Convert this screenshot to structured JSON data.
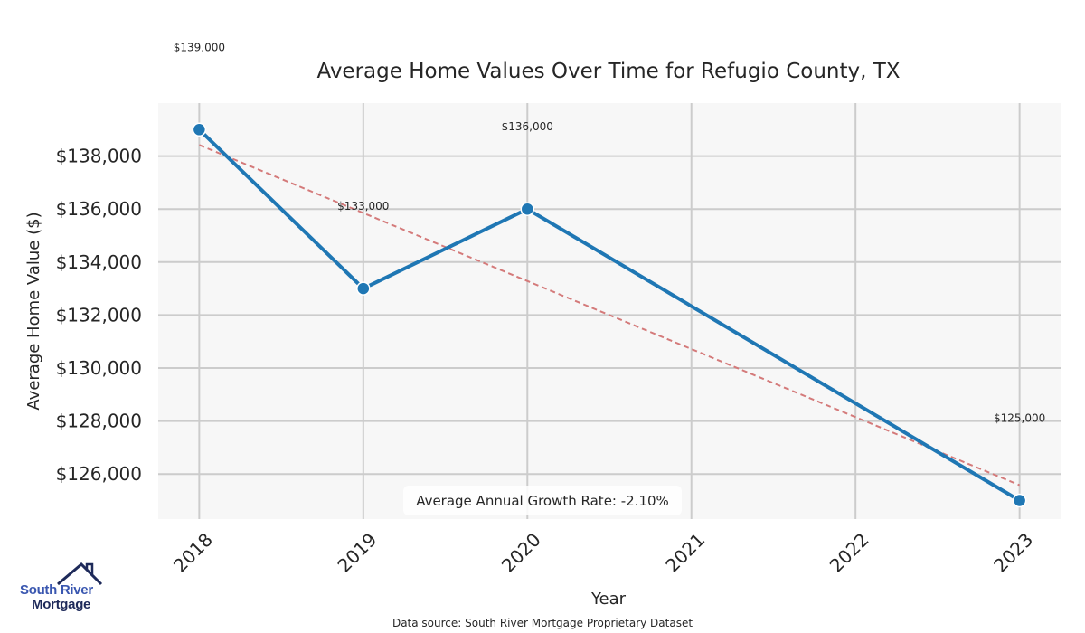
{
  "chart_data": {
    "type": "line",
    "title": "Average Home Values Over Time for Refugio County, TX",
    "xlabel": "Year",
    "ylabel": "Average Home Value ($)",
    "x": [
      2018,
      2019,
      2020,
      2021,
      2022,
      2023
    ],
    "x_tick_labels": [
      "2018",
      "2019",
      "2020",
      "2021",
      "2022",
      "2023"
    ],
    "y_tick_values": [
      126000,
      128000,
      130000,
      132000,
      134000,
      136000,
      138000
    ],
    "y_tick_labels": [
      "$126,000",
      "$128,000",
      "$130,000",
      "$132,000",
      "$134,000",
      "$136,000",
      "$138,000"
    ],
    "ylim": [
      124300,
      140000
    ],
    "xlim": [
      2017.75,
      2023.25
    ],
    "grid": true,
    "series": [
      {
        "name": "Average Home Value",
        "color": "#1f77b4",
        "points": [
          {
            "x": 2018,
            "y": 139000,
            "label": "$139,000"
          },
          {
            "x": 2019,
            "y": 133000,
            "label": "$133,000"
          },
          {
            "x": 2020,
            "y": 136000,
            "label": "$136,000"
          },
          {
            "x": 2023,
            "y": 125000,
            "label": "$125,000"
          }
        ]
      }
    ],
    "trend_line": {
      "name": "Trend",
      "color": "#d47a7a",
      "style": "dashed",
      "start": {
        "x": 2018,
        "y": 138420
      },
      "end": {
        "x": 2023,
        "y": 125580
      }
    },
    "annotation": "Average Annual Growth Rate: -2.10%",
    "source": "Data source: South River Mortgage Proprietary Dataset"
  },
  "branding": {
    "logo_line1": "South River",
    "logo_line2": "Mortgage",
    "primary_color": "#3a57b0",
    "dark_color": "#1e2a5a"
  },
  "colors": {
    "plot_background": "#f7f7f7",
    "grid": "#cccccc",
    "text": "#262626"
  }
}
